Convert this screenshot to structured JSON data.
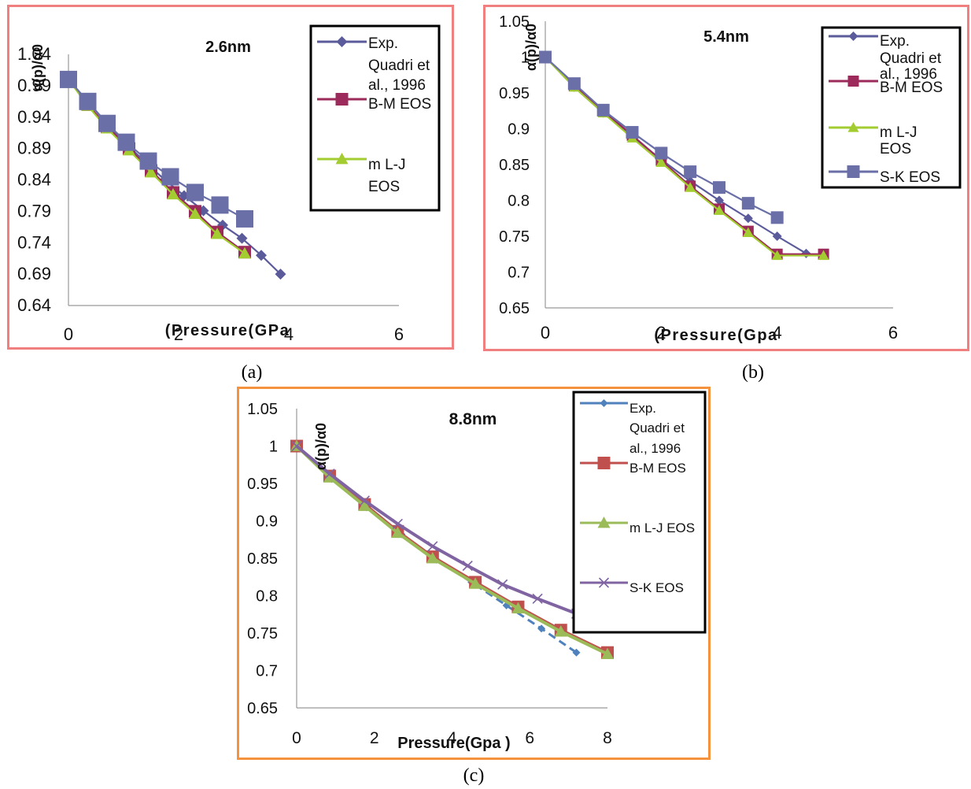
{
  "figure": {
    "panel_labels": [
      "(a)",
      "(b)",
      "(c)"
    ]
  },
  "colors": {
    "frame_ab": "#f08080",
    "frame_c": "#f5923e",
    "ab_exp": "#5b5b9c",
    "ab_bm": "#9c2a5a",
    "ab_lj": "#a2cc30",
    "ab_sk": "#6a6fa8",
    "c_exp": "#4f81bd",
    "c_bm": "#c0504d",
    "c_lj": "#9bbb59",
    "c_sk": "#8064a2"
  },
  "chart_data": [
    {
      "type": "line",
      "title": "2.6nm",
      "xlabel": "(Pressure(GPa",
      "ylabel": "α(p)/α0",
      "xlim": [
        0,
        6
      ],
      "ylim": [
        0.64,
        1.04
      ],
      "xticks": [
        "0",
        "2",
        "4",
        "6"
      ],
      "yticks": [
        "0.64",
        "0.69",
        "0.74",
        "0.79",
        "0.84",
        "0.89",
        "0.94",
        "0.99",
        "1.04"
      ],
      "grid": false,
      "legend_position": "top-right",
      "series": [
        {
          "name": "Exp. Quadri et al., 1996",
          "marker": "diamond",
          "x": [
            0,
            0.35,
            0.7,
            1.05,
            1.4,
            1.75,
            2.1,
            2.45,
            2.8,
            3.15,
            3.5,
            3.85
          ],
          "y": [
            1.0,
            0.965,
            0.929,
            0.897,
            0.868,
            0.84,
            0.815,
            0.791,
            0.768,
            0.747,
            0.72,
            0.69
          ]
        },
        {
          "name": "B-M EOS",
          "marker": "square",
          "x": [
            0,
            0.35,
            0.7,
            1.1,
            1.5,
            1.9,
            2.3,
            2.7,
            3.2
          ],
          "y": [
            1.0,
            0.96,
            0.925,
            0.89,
            0.855,
            0.82,
            0.79,
            0.757,
            0.725
          ]
        },
        {
          "name": "m L-J EOS",
          "marker": "triangle",
          "x": [
            0,
            0.35,
            0.7,
            1.1,
            1.5,
            1.9,
            2.3,
            2.7,
            3.2
          ],
          "y": [
            1.0,
            0.958,
            0.922,
            0.887,
            0.852,
            0.817,
            0.786,
            0.754,
            0.723
          ]
        },
        {
          "name": "",
          "marker": "square",
          "x": [
            0,
            0.35,
            0.7,
            1.05,
            1.45,
            1.85,
            2.3,
            2.75,
            3.2
          ],
          "y": [
            1.0,
            0.965,
            0.93,
            0.9,
            0.87,
            0.845,
            0.82,
            0.8,
            0.778
          ]
        }
      ]
    },
    {
      "type": "line",
      "title": "5.4nm",
      "xlabel": "(Pressure(Gpa",
      "ylabel": "α(p)/α0",
      "xlim": [
        0,
        6
      ],
      "ylim": [
        0.65,
        1.05
      ],
      "xticks": [
        "0",
        "2",
        "4",
        "6"
      ],
      "yticks": [
        "0.65",
        "0.7",
        "0.75",
        "0.8",
        "0.85",
        "0.9",
        "0.95",
        "1",
        "1.05"
      ],
      "grid": false,
      "legend_position": "top-right",
      "series": [
        {
          "name": "Exp. Quadri et al., 1996",
          "marker": "diamond",
          "x": [
            0,
            0.5,
            1.0,
            1.5,
            2.0,
            2.5,
            3.0,
            3.5,
            4.0,
            4.5
          ],
          "y": [
            1.0,
            0.958,
            0.922,
            0.889,
            0.857,
            0.827,
            0.8,
            0.775,
            0.75,
            0.726
          ]
        },
        {
          "name": "B-M EOS",
          "marker": "square",
          "x": [
            0,
            0.5,
            1.0,
            1.5,
            2.0,
            2.5,
            3.0,
            3.5,
            4.0,
            4.8
          ],
          "y": [
            1.0,
            0.96,
            0.925,
            0.891,
            0.856,
            0.82,
            0.788,
            0.757,
            0.725,
            0.725
          ]
        },
        {
          "name": "m L-J EOS",
          "marker": "triangle",
          "x": [
            0,
            0.5,
            1.0,
            1.5,
            2.0,
            2.5,
            3.0,
            3.5,
            4.0,
            4.8
          ],
          "y": [
            1.0,
            0.958,
            0.922,
            0.887,
            0.853,
            0.818,
            0.786,
            0.755,
            0.723,
            0.723
          ]
        },
        {
          "name": "S-K EOS",
          "marker": "square",
          "x": [
            0,
            0.5,
            1.0,
            1.5,
            2.0,
            2.5,
            3.0,
            3.5,
            4.0
          ],
          "y": [
            1.0,
            0.963,
            0.926,
            0.895,
            0.866,
            0.84,
            0.818,
            0.796,
            0.776
          ]
        }
      ]
    },
    {
      "type": "line",
      "title": "8.8nm",
      "xlabel": "Pressure(Gpa )",
      "ylabel": "α(p)/α0",
      "xlim": [
        0,
        8
      ],
      "ylim": [
        0.65,
        1.05
      ],
      "xticks": [
        "0",
        "2",
        "4",
        "6",
        "8"
      ],
      "yticks": [
        "0.65",
        "0.7",
        "0.75",
        "0.8",
        "0.85",
        "0.9",
        "0.95",
        "1",
        "1.05"
      ],
      "grid": false,
      "legend_position": "top-right",
      "series": [
        {
          "name": "Exp. Quadri et al., 1996",
          "marker": "diamond",
          "x": [
            0,
            0.9,
            1.8,
            2.7,
            3.6,
            4.5,
            5.4,
            6.3,
            7.2
          ],
          "y": [
            1.0,
            0.956,
            0.918,
            0.882,
            0.848,
            0.818,
            0.787,
            0.756,
            0.724
          ]
        },
        {
          "name": "B-M EOS",
          "marker": "square",
          "x": [
            0,
            0.85,
            1.75,
            2.6,
            3.5,
            4.6,
            5.7,
            6.8,
            8.0
          ],
          "y": [
            1.0,
            0.96,
            0.922,
            0.886,
            0.852,
            0.818,
            0.785,
            0.754,
            0.724
          ]
        },
        {
          "name": "m L-J EOS",
          "marker": "triangle",
          "x": [
            0,
            0.85,
            1.75,
            2.6,
            3.5,
            4.6,
            5.7,
            6.8,
            8.0
          ],
          "y": [
            1.0,
            0.958,
            0.92,
            0.884,
            0.85,
            0.816,
            0.783,
            0.752,
            0.722
          ]
        },
        {
          "name": "S-K EOS",
          "marker": "cross",
          "x": [
            0,
            0.85,
            1.75,
            2.6,
            3.5,
            4.4,
            5.3,
            6.2,
            7.2
          ],
          "y": [
            1.0,
            0.963,
            0.927,
            0.896,
            0.866,
            0.84,
            0.815,
            0.796,
            0.776
          ]
        }
      ]
    }
  ]
}
